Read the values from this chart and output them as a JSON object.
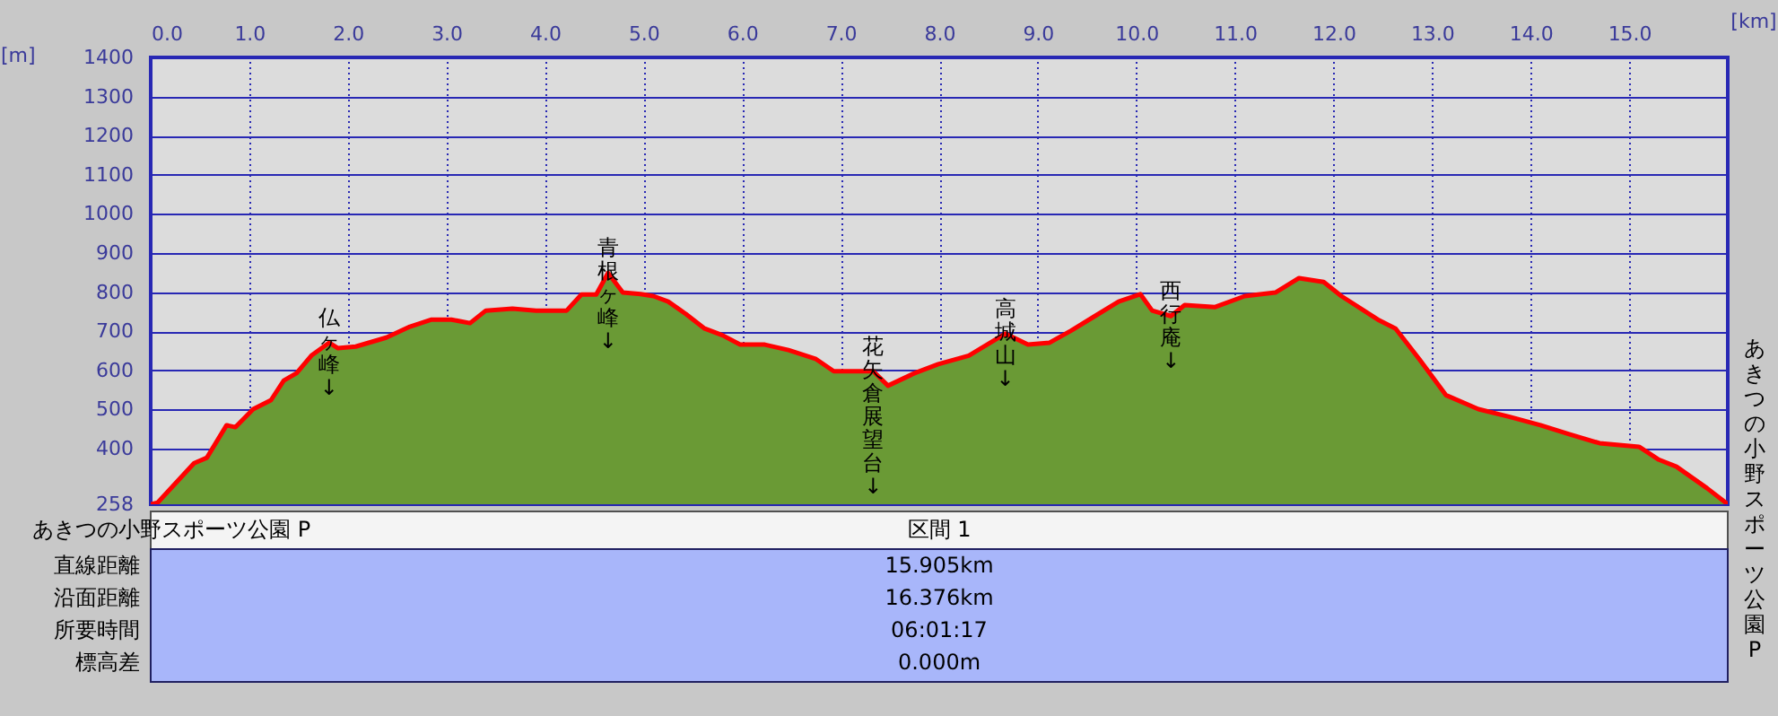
{
  "chart_data": {
    "type": "area",
    "xlabel": "[km]",
    "ylabel": "[m]",
    "xlim": [
      0,
      16.0
    ],
    "ylim": [
      258,
      1400
    ],
    "xticks": [
      {
        "value": 0,
        "label": "0.0"
      },
      {
        "value": 1,
        "label": "1.0"
      },
      {
        "value": 2,
        "label": "2.0"
      },
      {
        "value": 3,
        "label": "3.0"
      },
      {
        "value": 4,
        "label": "4.0"
      },
      {
        "value": 5,
        "label": "5.0"
      },
      {
        "value": 6,
        "label": "6.0"
      },
      {
        "value": 7,
        "label": "7.0"
      },
      {
        "value": 8,
        "label": "8.0"
      },
      {
        "value": 9,
        "label": "9.0"
      },
      {
        "value": 10,
        "label": "10.0"
      },
      {
        "value": 11,
        "label": "11.0"
      },
      {
        "value": 12,
        "label": "12.0"
      },
      {
        "value": 13,
        "label": "13.0"
      },
      {
        "value": 14,
        "label": "14.0"
      },
      {
        "value": 15,
        "label": "15.0"
      }
    ],
    "yticks": [
      258,
      400,
      500,
      600,
      700,
      800,
      900,
      1000,
      1100,
      1200,
      1300,
      1400
    ],
    "grid": true,
    "x": [
      0,
      0.07,
      0.44,
      0.57,
      0.77,
      0.86,
      1.04,
      1.22,
      1.35,
      1.48,
      1.63,
      1.81,
      1.9,
      2.08,
      2.39,
      2.63,
      2.85,
      3.05,
      3.24,
      3.4,
      3.67,
      3.91,
      4.22,
      4.37,
      4.52,
      4.64,
      4.79,
      4.97,
      5.1,
      5.25,
      5.43,
      5.62,
      5.8,
      5.98,
      6.23,
      6.47,
      6.75,
      6.93,
      7.33,
      7.48,
      7.75,
      7.99,
      8.3,
      8.67,
      8.9,
      9.12,
      9.34,
      9.58,
      9.82,
      10.04,
      10.16,
      10.35,
      10.49,
      10.8,
      11.1,
      11.41,
      11.65,
      11.9,
      12.08,
      12.45,
      12.63,
      12.87,
      13.14,
      13.47,
      13.78,
      14.1,
      14.39,
      14.7,
      15.1,
      15.3,
      15.48,
      15.79,
      16.0
    ],
    "series": [
      {
        "color": "#6a9a35",
        "values": [
          258,
          262,
          363,
          377,
          460,
          455,
          501,
          524,
          574,
          593,
          638,
          671,
          657,
          661,
          684,
          712,
          730,
          730,
          721,
          753,
          758,
          753,
          753,
          794,
          794,
          849,
          799,
          795,
          790,
          776,
          744,
          707,
          690,
          666,
          666,
          652,
          629,
          598,
          598,
          561,
          593,
          616,
          638,
          694,
          666,
          671,
          702,
          739,
          776,
          795,
          753,
          739,
          767,
          762,
          790,
          799,
          836,
          826,
          790,
          730,
          707,
          629,
          537,
          501,
          482,
          460,
          437,
          414,
          405,
          372,
          354,
          299,
          258
        ]
      }
    ],
    "annotations": [
      {
        "text": "仏ヶ峰↓",
        "x": 1.81,
        "y": 671
      },
      {
        "text": "青根ヶ峰↓",
        "x": 4.64,
        "y": 849
      },
      {
        "text": "花矢倉展望台↓",
        "x": 7.33,
        "y": 598
      },
      {
        "text": "高城山↓",
        "x": 8.67,
        "y": 694
      },
      {
        "text": "西行庵↓",
        "x": 10.35,
        "y": 739
      },
      "あきつの小野スポーツ公園 P",
      "あきつの小野スポーツ公園 P",
      "区間 1",
      "直線距離",
      "15.905km",
      "沿面距離",
      "16.376km",
      "所要時間",
      "06:01:17",
      "標高差",
      "0.000m"
    ]
  }
}
